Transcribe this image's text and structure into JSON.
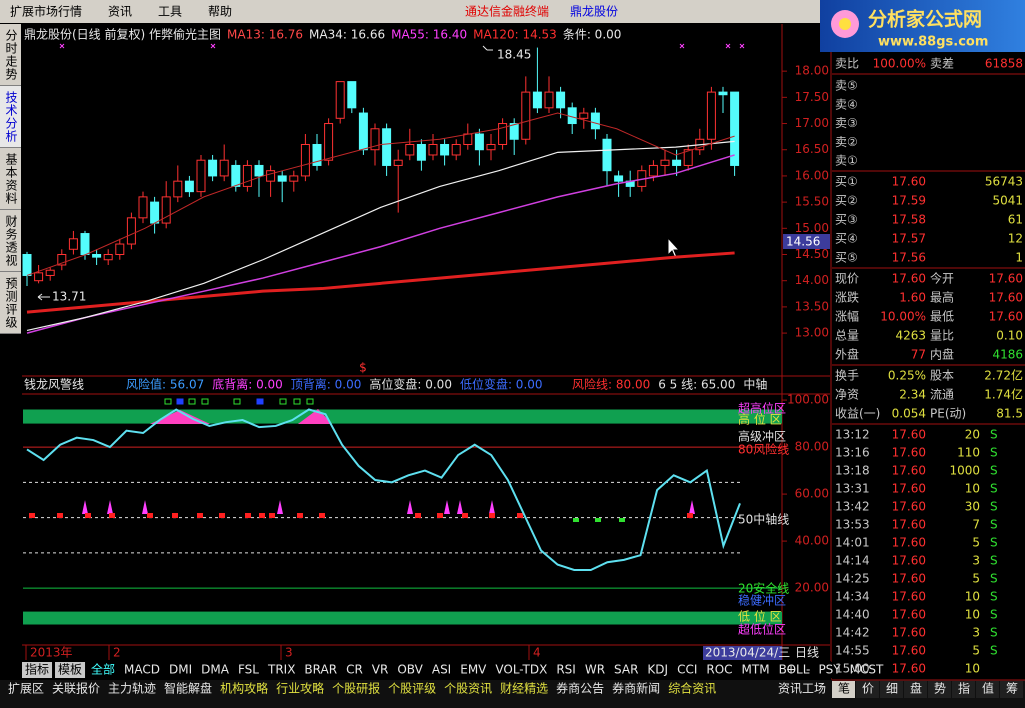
{
  "menu": {
    "items": [
      "扩展市场行情",
      "资讯",
      "工具",
      "帮助"
    ],
    "app_title": "通达信金融终端",
    "stock_name": "鼎龙股份"
  },
  "logo": {
    "title": "分析家公式网",
    "url": "www.88gs.com"
  },
  "side_tabs": [
    "分时走势",
    "技术分析",
    "基本资料",
    "财务透视",
    "预测评级"
  ],
  "price_chart": {
    "header": "鼎龙股份(日线 前复权) 作弊偷光主图",
    "ma_labels": [
      {
        "text": "MA13: 16.76",
        "color": "#ff4848"
      },
      {
        "text": "MA34: 16.66",
        "color": "#e8e8e8"
      },
      {
        "text": "MA55: 16.40",
        "color": "#ff40ff"
      },
      {
        "text": "MA120: 14.53",
        "color": "#ff3030"
      }
    ],
    "condition": "条件: 0.00",
    "ylim": [
      12.2,
      18.9
    ],
    "yticks": [
      {
        "value": 18,
        "label": "18.00"
      },
      {
        "value": 17.5,
        "label": "17.50"
      },
      {
        "value": 17,
        "label": "17.00"
      },
      {
        "value": 16.5,
        "label": "16.50"
      },
      {
        "value": 16,
        "label": "16.00"
      },
      {
        "value": 15.5,
        "label": "15.50"
      },
      {
        "value": 15,
        "label": "15.00"
      },
      {
        "value": 14.5,
        "label": "14.50"
      },
      {
        "value": 14,
        "label": "14.00"
      },
      {
        "value": 13.5,
        "label": "13.50"
      },
      {
        "value": 13,
        "label": "13.00"
      }
    ],
    "up_color": "#ff3232",
    "down_color": "#54fcfc",
    "candles": [
      [
        14.5,
        14.1,
        14.55,
        13.9
      ],
      [
        14.0,
        14.15,
        14.3,
        13.95
      ],
      [
        14.1,
        14.2,
        14.25,
        14.0
      ],
      [
        14.3,
        14.5,
        14.6,
        14.2
      ],
      [
        14.6,
        14.8,
        14.95,
        14.5
      ],
      [
        14.9,
        14.5,
        14.95,
        14.4
      ],
      [
        14.5,
        14.45,
        14.6,
        14.3
      ],
      [
        14.4,
        14.5,
        14.6,
        14.3
      ],
      [
        14.5,
        14.7,
        14.8,
        14.4
      ],
      [
        14.7,
        15.2,
        15.3,
        14.6
      ],
      [
        15.2,
        15.6,
        15.7,
        15.1
      ],
      [
        15.5,
        15.1,
        15.6,
        14.9
      ],
      [
        15.1,
        15.6,
        15.9,
        15.0
      ],
      [
        15.6,
        15.9,
        16.2,
        15.5
      ],
      [
        15.9,
        15.7,
        16.0,
        15.6
      ],
      [
        15.7,
        16.3,
        16.4,
        15.6
      ],
      [
        16.3,
        16.0,
        16.4,
        15.9
      ],
      [
        16.0,
        16.3,
        16.6,
        15.9
      ],
      [
        16.2,
        15.8,
        16.3,
        15.7
      ],
      [
        15.8,
        16.2,
        16.3,
        15.7
      ],
      [
        16.2,
        16.0,
        16.3,
        15.6
      ],
      [
        15.9,
        16.1,
        16.2,
        15.6
      ],
      [
        16.0,
        15.9,
        16.1,
        15.5
      ],
      [
        15.9,
        16.0,
        16.1,
        15.7
      ],
      [
        16.0,
        16.6,
        16.8,
        15.9
      ],
      [
        16.6,
        16.2,
        16.8,
        16.1
      ],
      [
        16.3,
        17.0,
        17.1,
        16.2
      ],
      [
        17.1,
        17.8,
        17.8,
        17.0
      ],
      [
        17.8,
        17.3,
        17.8,
        17.2
      ],
      [
        17.2,
        16.5,
        17.3,
        16.4
      ],
      [
        16.5,
        16.9,
        17.0,
        16.2
      ],
      [
        16.9,
        16.2,
        17.0,
        16.0
      ],
      [
        16.2,
        16.3,
        16.5,
        15.3
      ],
      [
        16.4,
        16.6,
        16.9,
        16.3
      ],
      [
        16.6,
        16.3,
        16.7,
        16.1
      ],
      [
        16.4,
        16.6,
        16.8,
        16.3
      ],
      [
        16.6,
        16.4,
        16.7,
        16.2
      ],
      [
        16.4,
        16.6,
        16.7,
        16.3
      ],
      [
        16.6,
        16.8,
        17.0,
        16.5
      ],
      [
        16.8,
        16.5,
        16.9,
        16.2
      ],
      [
        16.5,
        16.6,
        16.8,
        16.3
      ],
      [
        16.6,
        17.0,
        17.1,
        16.5
      ],
      [
        17.0,
        16.7,
        17.1,
        16.4
      ],
      [
        16.7,
        17.6,
        17.9,
        16.6
      ],
      [
        17.6,
        17.3,
        18.45,
        17.2
      ],
      [
        17.3,
        17.6,
        17.9,
        17.2
      ],
      [
        17.6,
        17.3,
        17.7,
        17.1
      ],
      [
        17.3,
        17.0,
        17.4,
        16.8
      ],
      [
        17.1,
        17.2,
        17.3,
        16.9
      ],
      [
        17.2,
        16.9,
        17.3,
        16.7
      ],
      [
        16.7,
        16.1,
        16.8,
        15.8
      ],
      [
        16.0,
        15.9,
        16.1,
        15.6
      ],
      [
        15.9,
        15.8,
        16.1,
        15.6
      ],
      [
        15.8,
        16.1,
        16.2,
        15.7
      ],
      [
        16.0,
        16.2,
        16.3,
        15.9
      ],
      [
        16.2,
        16.3,
        16.5,
        16.0
      ],
      [
        16.3,
        16.2,
        16.5,
        16.0
      ],
      [
        16.2,
        16.5,
        16.6,
        16.1
      ],
      [
        16.5,
        16.7,
        16.9,
        16.4
      ],
      [
        16.7,
        17.6,
        17.7,
        16.5
      ],
      [
        17.6,
        17.55,
        17.7,
        17.2
      ],
      [
        17.6,
        16.2,
        17.6,
        16.0
      ]
    ],
    "ma_lines": [
      {
        "name": "MA120",
        "color": "#e02020",
        "width": 3,
        "values": [
          13.4,
          13.5,
          13.6,
          13.7,
          13.8,
          13.85,
          13.95,
          14.05,
          14.15,
          14.25,
          14.35,
          14.45,
          14.53
        ]
      },
      {
        "name": "MA55",
        "color": "#d040e0",
        "width": 1.5,
        "values": [
          13.0,
          13.3,
          13.55,
          13.8,
          14.05,
          14.35,
          14.65,
          15.0,
          15.3,
          15.6,
          15.85,
          16.05,
          16.4
        ]
      },
      {
        "name": "MA34",
        "color": "#f0f0f0",
        "width": 1.2,
        "values": [
          13.05,
          13.3,
          13.6,
          13.95,
          14.4,
          14.9,
          15.4,
          15.8,
          16.1,
          16.45,
          16.5,
          16.55,
          16.66
        ]
      },
      {
        "name": "MA13",
        "color": "#c02828",
        "width": 1,
        "values": [
          14.1,
          14.5,
          15.0,
          15.6,
          16.0,
          16.3,
          16.6,
          16.7,
          16.9,
          17.2,
          16.9,
          16.4,
          16.76
        ]
      }
    ],
    "high_label": "18.45",
    "low_label": "13.71",
    "cursor_price": "14.56",
    "x_labels": [
      "2013年",
      "2",
      "3",
      "4"
    ],
    "date_label": "2013/04/24/三",
    "period": "日线"
  },
  "indicator": {
    "title": "钱龙风警线",
    "labels": [
      {
        "text": "风险值: 56.07",
        "color": "#3c9cff"
      },
      {
        "text": "底背离: 0.00",
        "color": "#ff40ff"
      },
      {
        "text": "顶背离: 0.00",
        "color": "#3c6cff"
      },
      {
        "text": "高位变盘: 0.00",
        "color": "#e0e0e0"
      },
      {
        "text": "低位变盘: 0.00",
        "color": "#3c6cff"
      }
    ],
    "right_labels": [
      {
        "text": "风险线: 80.00",
        "color": "#ff3030"
      },
      {
        "text": "6 5 线: 65.00",
        "color": "#e0e0e0"
      },
      {
        "text": "中轴",
        "color": "#e0e0e0"
      }
    ],
    "ylim": [
      -10.6,
      109.4
    ],
    "yticks": [
      {
        "value": 100,
        "label": "100.00"
      },
      {
        "value": 80,
        "label": "80.00"
      },
      {
        "value": 60,
        "label": "60.00"
      },
      {
        "value": 40,
        "label": "40.00"
      },
      {
        "value": 20,
        "label": "20.00"
      }
    ],
    "high_band": [
      90,
      96
    ],
    "low_band": [
      4.5,
      10
    ],
    "risk_line": 80,
    "mid_lines": [
      65,
      50,
      35
    ],
    "safe_line": 20,
    "line_color": "#5ee0f0",
    "values": [
      79,
      74.5,
      81,
      84,
      83,
      80,
      87,
      86,
      91.5,
      96,
      92,
      89,
      90.6,
      91.5,
      88.5,
      89,
      91.5,
      96,
      94,
      81,
      72,
      66,
      65,
      68,
      70,
      67,
      76.6,
      81,
      76.6,
      66,
      51,
      36,
      30,
      27.7,
      27.7,
      31,
      32,
      34,
      61.7,
      68,
      65,
      70,
      38,
      56.07
    ],
    "zone_labels": [
      "超高位区",
      "高 位 区",
      "高级冲区",
      "80风险线",
      "50中轴线",
      "20安全线",
      "稳健冲区",
      "低 位 区",
      "超低位区"
    ]
  },
  "order_book": {
    "header": [
      "卖比",
      "100.00%",
      "卖差",
      "61858"
    ],
    "sells": [
      "卖⑤",
      "卖④",
      "卖③",
      "卖②",
      "卖①"
    ],
    "buys": [
      [
        "买①",
        "17.60",
        "56743"
      ],
      [
        "买②",
        "17.59",
        "5041"
      ],
      [
        "买③",
        "17.58",
        "61"
      ],
      [
        "买④",
        "17.57",
        "12"
      ],
      [
        "买⑤",
        "17.56",
        "1"
      ]
    ],
    "quote": [
      [
        "现价",
        "17.60",
        "今开",
        "17.60"
      ],
      [
        "涨跌",
        "1.60",
        "最高",
        "17.60"
      ],
      [
        "涨幅",
        "10.00%",
        "最低",
        "17.60"
      ],
      [
        "总量",
        "4263",
        "量比",
        "0.10"
      ],
      [
        "外盘",
        "77",
        "内盘",
        "4186"
      ],
      [
        "换手",
        "0.25%",
        "股本",
        "2.72亿"
      ],
      [
        "净资",
        "2.34",
        "流通",
        "1.74亿"
      ],
      [
        "收益(一)",
        "0.054",
        "PE(动)",
        "81.5"
      ]
    ],
    "ticks": [
      [
        "13:12",
        "17.60",
        "20",
        "S"
      ],
      [
        "13:16",
        "17.60",
        "110",
        "S"
      ],
      [
        "13:18",
        "17.60",
        "1000",
        "S"
      ],
      [
        "13:31",
        "17.60",
        "10",
        "S"
      ],
      [
        "13:42",
        "17.60",
        "30",
        "S"
      ],
      [
        "13:53",
        "17.60",
        "7",
        "S"
      ],
      [
        "14:01",
        "17.60",
        "5",
        "S"
      ],
      [
        "14:14",
        "17.60",
        "3",
        "S"
      ],
      [
        "14:25",
        "17.60",
        "5",
        "S"
      ],
      [
        "14:34",
        "17.60",
        "10",
        "S"
      ],
      [
        "14:40",
        "17.60",
        "10",
        "S"
      ],
      [
        "14:42",
        "17.60",
        "3",
        "S"
      ],
      [
        "14:55",
        "17.60",
        "5",
        "S"
      ],
      [
        "15:00",
        "17.60",
        "10"
      ]
    ],
    "panel_tabs": [
      "笔",
      "价",
      "细",
      "盘",
      "势",
      "指",
      "值",
      "筹"
    ]
  },
  "bottom": {
    "indicator_tabs": [
      "指标",
      "模板",
      "全部",
      "MACD",
      "DMI",
      "DMA",
      "FSL",
      "TRIX",
      "BRAR",
      "CR",
      "VR",
      "OBV",
      "ASI",
      "EMV",
      "VOL-TDX",
      "RSI",
      "WR",
      "SAR",
      "KDJ",
      "CCI",
      "ROC",
      "MTM",
      "BOLL",
      "PSY",
      "MCST"
    ],
    "zoom": [
      "+",
      "-"
    ],
    "info_tabs": [
      "扩展区",
      "关联报价",
      "主力轨迹",
      "智能解盘",
      "机构攻略",
      "行业攻略",
      "个股研报",
      "个股评级",
      "个股资讯",
      "财经精选",
      "券商公告",
      "券商新闻",
      "综合资讯"
    ],
    "info_right": "资讯工场"
  }
}
